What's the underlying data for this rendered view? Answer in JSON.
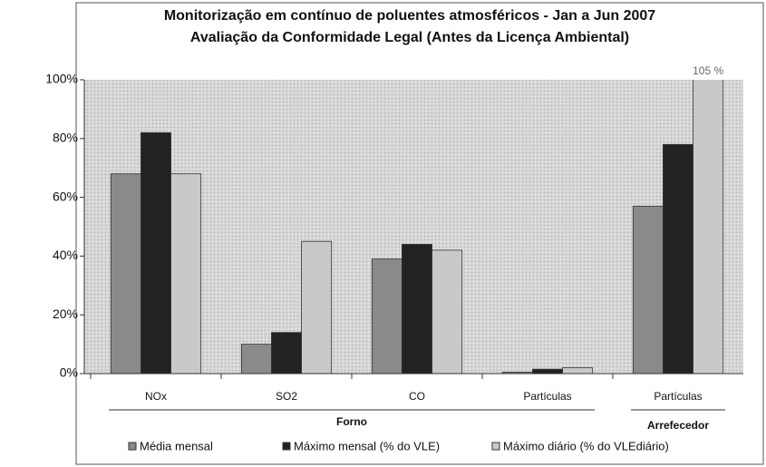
{
  "chart_data": {
    "type": "bar",
    "title": "Monitorização em contínuo de poluentes atmosféricos - Jan a Jun 2007",
    "subtitle": "Avaliação da Conformidade Legal (Antes da Licença Ambiental)",
    "categories": [
      "NOx",
      "SO2",
      "CO",
      "Partículas",
      "Partículas"
    ],
    "groups": [
      {
        "name": "Forno",
        "count": 4
      },
      {
        "name": "Arrefecedor",
        "count": 1
      }
    ],
    "series": [
      {
        "name": "Média mensal",
        "color": "#8a8a8a",
        "values": [
          68,
          10,
          39,
          0.5,
          57
        ]
      },
      {
        "name": "Máximo mensal (% do VLE)",
        "color": "#222222",
        "values": [
          82,
          14,
          44,
          1.5,
          78
        ]
      },
      {
        "name": "Máximo diário (% do VLEdiário)",
        "color": "#c9c9c9",
        "values": [
          68,
          45,
          42,
          2,
          105
        ],
        "value_labels": [
          null,
          null,
          null,
          null,
          "105 %"
        ]
      }
    ],
    "ylim": [
      0,
      100
    ],
    "yticks": [
      {
        "value": 0,
        "label": "0%"
      },
      {
        "value": 20,
        "label": "20%"
      },
      {
        "value": 40,
        "label": "40%"
      },
      {
        "value": 60,
        "label": "60%"
      },
      {
        "value": 80,
        "label": "80%"
      },
      {
        "value": 100,
        "label": "100%"
      }
    ],
    "grid": false,
    "legend": "bottom"
  }
}
